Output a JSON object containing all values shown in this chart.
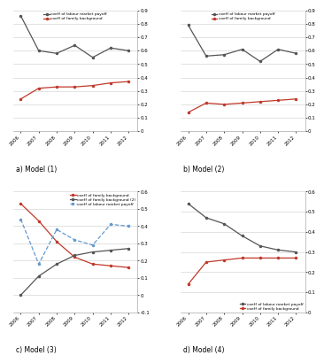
{
  "years": [
    2006,
    2007,
    2008,
    2009,
    2010,
    2011,
    2012
  ],
  "model1": {
    "family_bg": [
      0.24,
      0.32,
      0.33,
      0.33,
      0.34,
      0.36,
      0.37
    ],
    "labour_payoff": [
      0.86,
      0.6,
      0.58,
      0.64,
      0.55,
      0.62,
      0.6
    ],
    "ylim": [
      0,
      0.9
    ],
    "yticks": [
      0,
      0.1,
      0.2,
      0.3,
      0.4,
      0.5,
      0.6,
      0.7,
      0.8,
      0.9
    ],
    "label": "a) Model (1)"
  },
  "model2": {
    "family_bg": [
      0.14,
      0.21,
      0.2,
      0.21,
      0.22,
      0.23,
      0.24
    ],
    "labour_payoff": [
      0.79,
      0.56,
      0.57,
      0.61,
      0.52,
      0.61,
      0.58
    ],
    "ylim": [
      0,
      0.9
    ],
    "yticks": [
      0,
      0.1,
      0.2,
      0.3,
      0.4,
      0.5,
      0.6,
      0.7,
      0.8,
      0.9
    ],
    "label": "b) Model (2)"
  },
  "model3": {
    "family_bg": [
      0.53,
      0.43,
      0.31,
      0.22,
      0.18,
      0.17,
      0.16
    ],
    "family_bg2": [
      0.0,
      0.11,
      0.18,
      0.23,
      0.25,
      0.26,
      0.27
    ],
    "labour_payoff": [
      0.44,
      0.18,
      0.38,
      0.32,
      0.29,
      0.41,
      0.4
    ],
    "ylim": [
      -0.1,
      0.6
    ],
    "yticks": [
      -0.1,
      0,
      0.1,
      0.2,
      0.3,
      0.4,
      0.5,
      0.6
    ],
    "label": "c) Model (3)"
  },
  "model4": {
    "family_bg": [
      0.14,
      0.25,
      0.26,
      0.27,
      0.27,
      0.27,
      0.27
    ],
    "labour_payoff": [
      0.54,
      0.47,
      0.44,
      0.38,
      0.33,
      0.31,
      0.3
    ],
    "ylim": [
      0,
      0.6
    ],
    "yticks": [
      0,
      0.1,
      0.2,
      0.3,
      0.4,
      0.5,
      0.6
    ],
    "label": "d) Model (4)"
  },
  "legend_family": "coeff of family background",
  "legend_family2": "coeff of family background (2)",
  "legend_labour": "coeff of labour market payoff",
  "color_red": "#C0392B",
  "color_black": "#555555",
  "color_blue_dashed": "#6699CC"
}
